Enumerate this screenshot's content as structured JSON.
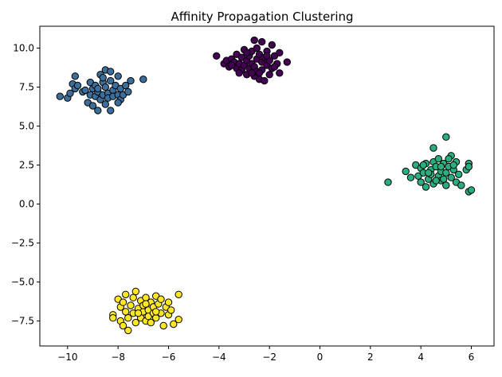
{
  "chart_data": {
    "type": "scatter",
    "title": "Affinity Propagation Clustering",
    "xlabel": "",
    "ylabel": "",
    "xlim": [
      -11.1,
      6.9
    ],
    "ylim": [
      -9.1,
      11.4
    ],
    "xticks": [
      -10,
      -8,
      -6,
      -4,
      -2,
      0,
      2,
      4,
      6
    ],
    "yticks": [
      -7.5,
      -5.0,
      -2.5,
      0.0,
      2.5,
      5.0,
      7.5,
      10.0
    ],
    "xtick_labels": [
      "−10",
      "−8",
      "−6",
      "−4",
      "−2",
      "0",
      "2",
      "4",
      "6"
    ],
    "ytick_labels": [
      "−7.5",
      "−5.0",
      "−2.5",
      "0.0",
      "2.5",
      "5.0",
      "7.5",
      "10.0"
    ],
    "grid": false,
    "legend": false,
    "marker_edge_color": "#000000",
    "series": [
      {
        "color": "#440154",
        "points": [
          [
            -4.1,
            9.5
          ],
          [
            -3.8,
            9.0
          ],
          [
            -3.7,
            9.2
          ],
          [
            -3.6,
            8.8
          ],
          [
            -3.5,
            9.3
          ],
          [
            -3.4,
            9.1
          ],
          [
            -3.3,
            8.7
          ],
          [
            -3.3,
            9.6
          ],
          [
            -3.2,
            9.0
          ],
          [
            -3.1,
            8.6
          ],
          [
            -3.1,
            9.4
          ],
          [
            -3.0,
            9.9
          ],
          [
            -3.0,
            8.9
          ],
          [
            -2.9,
            9.2
          ],
          [
            -2.9,
            8.3
          ],
          [
            -2.8,
            9.5
          ],
          [
            -2.8,
            8.7
          ],
          [
            -2.7,
            9.8
          ],
          [
            -2.7,
            9.0
          ],
          [
            -2.6,
            8.2
          ],
          [
            -2.6,
            8.8
          ],
          [
            -2.5,
            10.0
          ],
          [
            -2.5,
            9.3
          ],
          [
            -2.5,
            8.5
          ],
          [
            -2.4,
            9.6
          ],
          [
            -2.4,
            8.0
          ],
          [
            -2.3,
            9.1
          ],
          [
            -2.3,
            8.6
          ],
          [
            -2.3,
            10.4
          ],
          [
            -2.2,
            9.4
          ],
          [
            -2.2,
            7.9
          ],
          [
            -2.1,
            8.9
          ],
          [
            -2.1,
            9.8
          ],
          [
            -2.0,
            8.3
          ],
          [
            -2.0,
            9.2
          ],
          [
            -1.9,
            10.2
          ],
          [
            -1.9,
            8.7
          ],
          [
            -1.8,
            9.5
          ],
          [
            -1.7,
            9.0
          ],
          [
            -1.6,
            8.4
          ],
          [
            -1.6,
            9.7
          ],
          [
            -1.3,
            9.1
          ],
          [
            -3.2,
            8.4
          ],
          [
            -2.9,
            9.7
          ],
          [
            -2.6,
            10.5
          ],
          [
            -2.4,
            8.4
          ],
          [
            -2.1,
            9.5
          ],
          [
            -2.7,
            8.4
          ],
          [
            -3.5,
            8.9
          ],
          [
            -1.8,
            8.8
          ]
        ]
      },
      {
        "color": "#3b6e9a",
        "points": [
          [
            -10.3,
            6.9
          ],
          [
            -10.0,
            6.8
          ],
          [
            -9.9,
            7.1
          ],
          [
            -9.8,
            7.7
          ],
          [
            -9.7,
            8.2
          ],
          [
            -9.7,
            7.4
          ],
          [
            -9.6,
            7.6
          ],
          [
            -9.4,
            7.2
          ],
          [
            -9.2,
            6.5
          ],
          [
            -9.1,
            7.0
          ],
          [
            -9.1,
            7.8
          ],
          [
            -9.0,
            6.3
          ],
          [
            -9.0,
            7.4
          ],
          [
            -8.9,
            6.9
          ],
          [
            -8.9,
            7.6
          ],
          [
            -8.8,
            6.0
          ],
          [
            -8.8,
            7.2
          ],
          [
            -8.7,
            6.7
          ],
          [
            -8.7,
            8.3
          ],
          [
            -8.6,
            7.0
          ],
          [
            -8.6,
            7.8
          ],
          [
            -8.5,
            6.4
          ],
          [
            -8.5,
            7.5
          ],
          [
            -8.5,
            8.6
          ],
          [
            -8.4,
            7.1
          ],
          [
            -8.4,
            6.8
          ],
          [
            -8.3,
            7.9
          ],
          [
            -8.3,
            8.5
          ],
          [
            -8.2,
            7.3
          ],
          [
            -8.2,
            6.9
          ],
          [
            -8.1,
            7.6
          ],
          [
            -8.0,
            8.2
          ],
          [
            -8.0,
            7.0
          ],
          [
            -7.9,
            6.7
          ],
          [
            -7.9,
            7.4
          ],
          [
            -7.8,
            7.0
          ],
          [
            -7.7,
            7.6
          ],
          [
            -7.6,
            7.2
          ],
          [
            -7.5,
            7.9
          ],
          [
            -8.3,
            6.0
          ],
          [
            -7.0,
            8.0
          ],
          [
            -8.6,
            8.1
          ],
          [
            -9.3,
            7.3
          ],
          [
            -8.0,
            6.5
          ],
          [
            -8.8,
            7.4
          ]
        ]
      },
      {
        "color": "#2aae7f",
        "points": [
          [
            2.7,
            1.4
          ],
          [
            3.4,
            2.1
          ],
          [
            3.6,
            1.7
          ],
          [
            3.8,
            2.5
          ],
          [
            3.9,
            1.8
          ],
          [
            4.0,
            2.3
          ],
          [
            4.0,
            1.4
          ],
          [
            4.1,
            2.0
          ],
          [
            4.2,
            1.1
          ],
          [
            4.2,
            2.6
          ],
          [
            4.3,
            1.6
          ],
          [
            4.4,
            2.2
          ],
          [
            4.4,
            1.9
          ],
          [
            4.5,
            2.7
          ],
          [
            4.5,
            1.3
          ],
          [
            4.5,
            3.6
          ],
          [
            4.6,
            2.4
          ],
          [
            4.7,
            1.8
          ],
          [
            4.7,
            2.9
          ],
          [
            4.8,
            1.5
          ],
          [
            4.8,
            2.1
          ],
          [
            4.9,
            2.6
          ],
          [
            5.0,
            1.2
          ],
          [
            5.0,
            4.3
          ],
          [
            5.0,
            2.0
          ],
          [
            5.1,
            2.4
          ],
          [
            5.2,
            1.7
          ],
          [
            5.2,
            3.1
          ],
          [
            5.3,
            2.2
          ],
          [
            5.4,
            1.4
          ],
          [
            5.4,
            2.7
          ],
          [
            5.5,
            1.9
          ],
          [
            5.6,
            1.2
          ],
          [
            5.8,
            2.2
          ],
          [
            5.9,
            2.6
          ],
          [
            5.9,
            2.4
          ],
          [
            5.9,
            0.8
          ],
          [
            6.0,
            0.9
          ],
          [
            4.1,
            2.5
          ],
          [
            4.6,
            1.5
          ],
          [
            5.1,
            2.9
          ],
          [
            4.3,
            2.0
          ],
          [
            4.9,
            1.6
          ],
          [
            5.3,
            2.5
          ],
          [
            4.8,
            2.4
          ]
        ]
      },
      {
        "color": "#fde725",
        "points": [
          [
            -8.2,
            -7.1
          ],
          [
            -8.2,
            -7.3
          ],
          [
            -8.0,
            -6.1
          ],
          [
            -7.9,
            -6.6
          ],
          [
            -7.9,
            -7.5
          ],
          [
            -7.8,
            -6.3
          ],
          [
            -7.8,
            -7.8
          ],
          [
            -7.7,
            -5.8
          ],
          [
            -7.7,
            -6.9
          ],
          [
            -7.6,
            -7.3
          ],
          [
            -7.6,
            -8.1
          ],
          [
            -7.5,
            -6.5
          ],
          [
            -7.4,
            -6.0
          ],
          [
            -7.4,
            -7.0
          ],
          [
            -7.3,
            -5.6
          ],
          [
            -7.3,
            -7.6
          ],
          [
            -7.2,
            -6.7
          ],
          [
            -7.1,
            -6.2
          ],
          [
            -7.1,
            -7.3
          ],
          [
            -7.0,
            -6.9
          ],
          [
            -7.0,
            -6.5
          ],
          [
            -6.9,
            -7.5
          ],
          [
            -6.9,
            -6.0
          ],
          [
            -6.8,
            -6.8
          ],
          [
            -6.8,
            -7.2
          ],
          [
            -6.7,
            -6.3
          ],
          [
            -6.7,
            -7.6
          ],
          [
            -6.6,
            -6.6
          ],
          [
            -6.6,
            -7.0
          ],
          [
            -6.5,
            -5.9
          ],
          [
            -6.5,
            -7.3
          ],
          [
            -6.4,
            -6.4
          ],
          [
            -6.3,
            -7.0
          ],
          [
            -6.3,
            -6.1
          ],
          [
            -6.2,
            -7.8
          ],
          [
            -6.1,
            -6.6
          ],
          [
            -6.0,
            -7.1
          ],
          [
            -6.0,
            -6.3
          ],
          [
            -5.9,
            -6.8
          ],
          [
            -5.8,
            -7.7
          ],
          [
            -5.6,
            -5.8
          ],
          [
            -5.6,
            -7.4
          ],
          [
            -6.9,
            -6.4
          ],
          [
            -7.2,
            -7.0
          ],
          [
            -6.5,
            -6.9
          ]
        ]
      }
    ]
  }
}
